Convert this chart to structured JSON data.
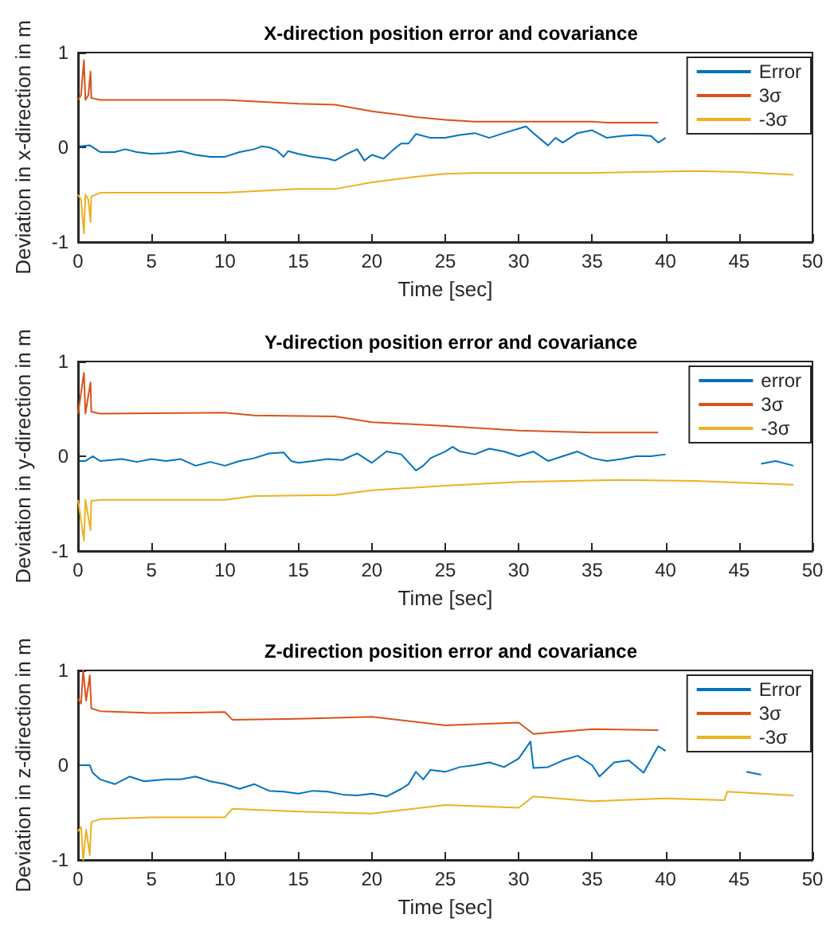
{
  "chart_data": [
    {
      "type": "line",
      "title": "X-direction position error and covariance",
      "xlabel": "Time [sec]",
      "ylabel": "Deviation in x-direction in m",
      "xlim": [
        0,
        50
      ],
      "xticks": [
        0,
        5,
        10,
        15,
        20,
        25,
        30,
        35,
        40,
        45,
        50
      ],
      "ylim": [
        -1,
        1
      ],
      "yticks": [
        -1,
        0,
        1
      ],
      "legend": "top right",
      "grid": false,
      "marker": "none",
      "line_style": "solid",
      "series": [
        {
          "name": "Error",
          "color": "#0072bd",
          "x": [
            0.1,
            0.8,
            1.5,
            2.5,
            3.2,
            4,
            5,
            6,
            7,
            8,
            9,
            10,
            11,
            12,
            12.5,
            13,
            13.5,
            14,
            14.3,
            15,
            16,
            17,
            17.5,
            18.3,
            19,
            19.5,
            20,
            20.8,
            21.5,
            22,
            22.5,
            23,
            24,
            25,
            26,
            27,
            28,
            29,
            30.5,
            31,
            32,
            32.5,
            33,
            34,
            35,
            36,
            37,
            38,
            39,
            39.5,
            40
          ],
          "values": [
            0.01,
            0.02,
            -0.05,
            -0.05,
            -0.02,
            -0.05,
            -0.07,
            -0.06,
            -0.04,
            -0.08,
            -0.1,
            -0.1,
            -0.05,
            -0.02,
            0.01,
            0,
            -0.03,
            -0.1,
            -0.04,
            -0.07,
            -0.1,
            -0.12,
            -0.14,
            -0.07,
            -0.02,
            -0.14,
            -0.08,
            -0.12,
            -0.02,
            0.04,
            0.04,
            0.14,
            0.1,
            0.1,
            0.13,
            0.15,
            0.1,
            0.15,
            0.22,
            0.15,
            0.02,
            0.1,
            0.05,
            0.15,
            0.18,
            0.1,
            0.12,
            0.13,
            0.12,
            0.05,
            0.1
          ]
        },
        {
          "name": "3σ",
          "color": "#d95319",
          "x": [
            0,
            0.2,
            0.4,
            0.5,
            0.7,
            0.85,
            0.9,
            1.5,
            10,
            15,
            17.5,
            20,
            23,
            25,
            27,
            35,
            36,
            39.5
          ],
          "values": [
            0.5,
            0.55,
            0.92,
            0.5,
            0.55,
            0.8,
            0.52,
            0.5,
            0.5,
            0.46,
            0.45,
            0.38,
            0.32,
            0.29,
            0.27,
            0.27,
            0.26,
            0.26
          ]
        },
        {
          "name": "-3σ",
          "color": "#edb120",
          "x": [
            0,
            0.2,
            0.4,
            0.5,
            0.7,
            0.85,
            0.9,
            1.5,
            10,
            15,
            17.5,
            20,
            23,
            25,
            27,
            35,
            42,
            45,
            48.7
          ],
          "values": [
            -0.5,
            -0.55,
            -0.91,
            -0.5,
            -0.55,
            -0.79,
            -0.52,
            -0.48,
            -0.48,
            -0.44,
            -0.44,
            -0.37,
            -0.31,
            -0.28,
            -0.27,
            -0.27,
            -0.25,
            -0.26,
            -0.29
          ]
        }
      ]
    },
    {
      "type": "line",
      "title": "Y-direction position error and covariance",
      "xlabel": "Time [sec]",
      "ylabel": "Deviation in y-direction in m",
      "xlim": [
        0,
        50
      ],
      "xticks": [
        0,
        5,
        10,
        15,
        20,
        25,
        30,
        35,
        40,
        45,
        50
      ],
      "ylim": [
        -1,
        1
      ],
      "yticks": [
        -1,
        0,
        1
      ],
      "legend": "top right",
      "grid": false,
      "marker": "none",
      "line_style": "solid",
      "series": [
        {
          "name": "error",
          "color": "#0072bd",
          "x": [
            0.1,
            0.5,
            1,
            1.5,
            3,
            4,
            5,
            6,
            7,
            8,
            9,
            10,
            11,
            12,
            13,
            14,
            14.5,
            15,
            16,
            17,
            18,
            19,
            20,
            21,
            22,
            23,
            23.5,
            24,
            25,
            25.5,
            26,
            27,
            28,
            29,
            30,
            31,
            32,
            33,
            34,
            35,
            36,
            37,
            38,
            39,
            40,
            44,
            46.5,
            47.5,
            48.7
          ],
          "values": [
            -0.05,
            -0.05,
            0,
            -0.05,
            -0.03,
            -0.06,
            -0.03,
            -0.05,
            -0.03,
            -0.1,
            -0.06,
            -0.1,
            -0.05,
            -0.02,
            0.03,
            0.04,
            -0.05,
            -0.07,
            -0.05,
            -0.03,
            -0.04,
            0.03,
            -0.07,
            0.05,
            0.02,
            -0.15,
            -0.1,
            -0.02,
            0.05,
            0.1,
            0.05,
            0.02,
            0.08,
            0.05,
            0,
            0.05,
            -0.05,
            0,
            0.05,
            -0.02,
            -0.05,
            -0.03,
            0,
            0,
            0.02,
            null,
            -0.08,
            -0.05,
            -0.1
          ]
        },
        {
          "name": "3σ",
          "color": "#d95319",
          "x": [
            0,
            0.4,
            0.5,
            0.85,
            0.9,
            1.5,
            10,
            12,
            17.5,
            20,
            25,
            30,
            35,
            39.5
          ],
          "values": [
            0.45,
            0.88,
            0.45,
            0.78,
            0.47,
            0.45,
            0.46,
            0.43,
            0.42,
            0.36,
            0.32,
            0.27,
            0.25,
            0.25
          ]
        },
        {
          "name": "-3σ",
          "color": "#edb120",
          "x": [
            0,
            0.4,
            0.5,
            0.85,
            0.9,
            1.5,
            10,
            12,
            17.5,
            20,
            25,
            30,
            37,
            42,
            48.7
          ],
          "values": [
            -0.46,
            -0.89,
            -0.46,
            -0.78,
            -0.47,
            -0.46,
            -0.46,
            -0.42,
            -0.41,
            -0.36,
            -0.31,
            -0.27,
            -0.25,
            -0.26,
            -0.3
          ]
        }
      ]
    },
    {
      "type": "line",
      "title": "Z-direction position error and covariance",
      "xlabel": "Time [sec]",
      "ylabel": "Deviation in z-direction in m",
      "xlim": [
        0,
        50
      ],
      "xticks": [
        0,
        5,
        10,
        15,
        20,
        25,
        30,
        35,
        40,
        45,
        50
      ],
      "ylim": [
        -1,
        1
      ],
      "yticks": [
        -1,
        0,
        1
      ],
      "legend": "top right",
      "grid": false,
      "marker": "none",
      "line_style": "solid",
      "series": [
        {
          "name": "Error",
          "color": "#0072bd",
          "x": [
            0.1,
            0.5,
            0.8,
            1,
            1.5,
            2.5,
            3.5,
            4.5,
            6,
            7,
            8,
            9,
            10,
            11,
            12,
            13,
            14,
            15,
            16,
            17,
            18,
            19,
            20,
            21,
            22,
            22.5,
            23,
            23.5,
            24,
            25,
            26,
            27,
            28,
            29,
            30,
            30.8,
            31,
            32,
            33,
            34,
            35,
            35.5,
            36.5,
            37.5,
            38.5,
            39.5,
            40,
            43,
            45.5,
            46.5
          ],
          "values": [
            0,
            0,
            0,
            -0.08,
            -0.15,
            -0.2,
            -0.12,
            -0.17,
            -0.15,
            -0.15,
            -0.12,
            -0.17,
            -0.2,
            -0.25,
            -0.2,
            -0.27,
            -0.28,
            -0.3,
            -0.27,
            -0.28,
            -0.31,
            -0.32,
            -0.3,
            -0.33,
            -0.25,
            -0.2,
            -0.07,
            -0.15,
            -0.05,
            -0.07,
            -0.02,
            0,
            0.03,
            -0.02,
            0.07,
            0.25,
            -0.03,
            -0.02,
            0.05,
            0.1,
            0,
            -0.12,
            0.03,
            0.05,
            -0.08,
            0.2,
            0.15,
            null,
            -0.07,
            -0.1
          ]
        },
        {
          "name": "3σ",
          "color": "#d95319",
          "x": [
            0,
            0.2,
            0.35,
            0.55,
            0.8,
            0.9,
            1.5,
            5,
            10,
            10.5,
            15,
            20,
            25,
            30,
            31,
            35,
            39.5
          ],
          "values": [
            0.7,
            0.65,
            1,
            0.68,
            0.95,
            0.6,
            0.57,
            0.55,
            0.56,
            0.48,
            0.49,
            0.51,
            0.42,
            0.45,
            0.33,
            0.38,
            0.37
          ]
        },
        {
          "name": "-3σ",
          "color": "#edb120",
          "x": [
            0,
            0.2,
            0.35,
            0.55,
            0.8,
            0.9,
            1.5,
            5,
            10,
            10.5,
            15,
            20,
            25,
            30,
            31,
            35,
            40,
            44,
            44.2,
            48.7
          ],
          "values": [
            -0.7,
            -0.65,
            -1,
            -0.68,
            -0.95,
            -0.6,
            -0.57,
            -0.55,
            -0.55,
            -0.46,
            -0.49,
            -0.51,
            -0.42,
            -0.45,
            -0.33,
            -0.38,
            -0.35,
            -0.37,
            -0.28,
            -0.32
          ]
        }
      ]
    }
  ]
}
